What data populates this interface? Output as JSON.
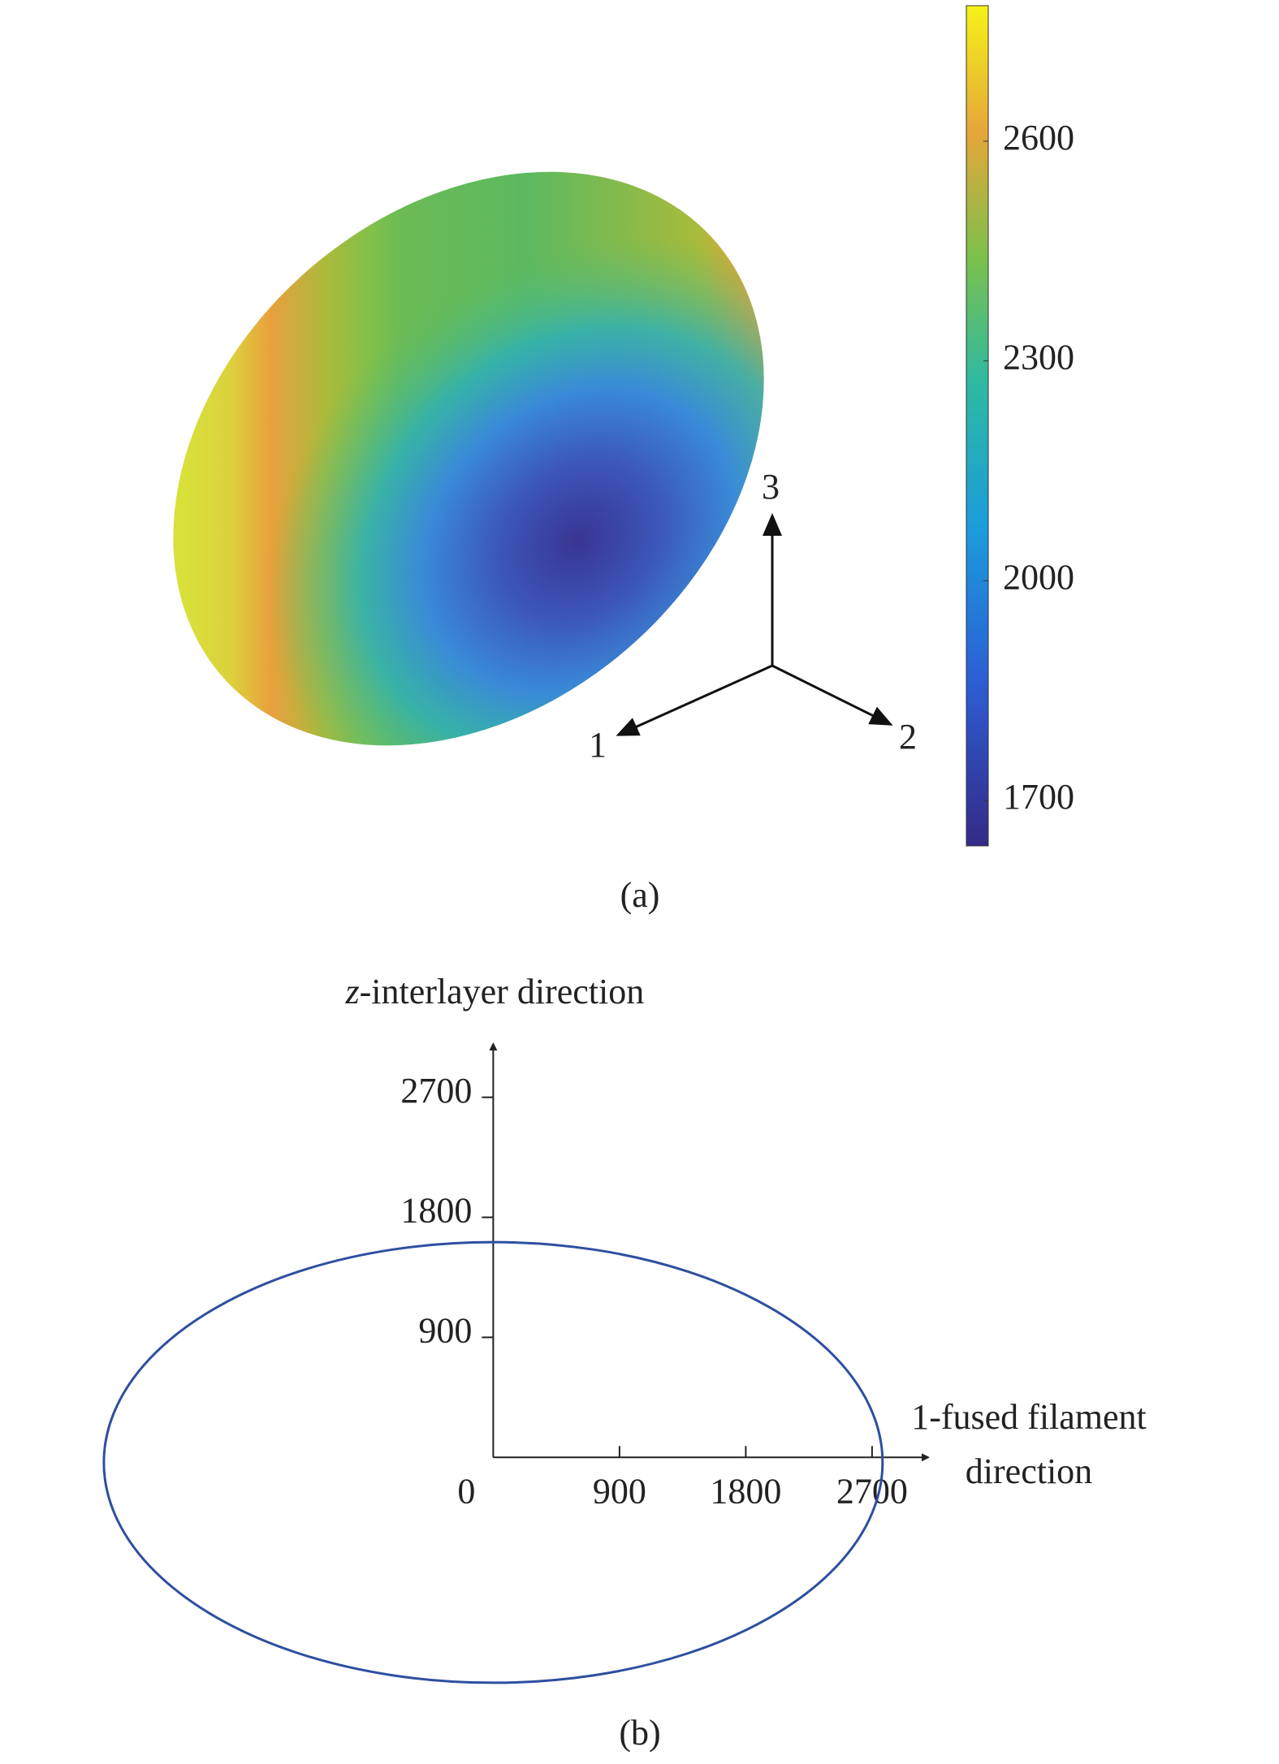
{
  "chart_data": [
    {
      "type": "surface",
      "colormap": "parula",
      "clim": [
        1638,
        2785
      ],
      "cticks": [
        1700,
        2000,
        2300,
        2600
      ],
      "xlabel": "1",
      "ylabel": "2",
      "zlabel": "3",
      "caption": "(a)"
    },
    {
      "type": "line",
      "ylabel": "z-interlayer direction",
      "xlabel": "1-fused filament direction",
      "caption": "(b)",
      "xlim": [
        -3000,
        3100
      ],
      "ylim": [
        -1800,
        3100
      ],
      "xticks": [
        0,
        900,
        1800,
        2700
      ],
      "yticks": [
        900,
        1800,
        2700
      ],
      "closed": true,
      "series": [
        {
          "color": "#2e4fa0",
          "x": [
            2775,
            2680,
            2403,
            1962,
            1388,
            718,
            0,
            -718,
            -1388,
            -1962,
            -2403,
            -2680,
            -2775,
            -2680,
            -2403,
            -1962,
            -1388,
            -718,
            0,
            718,
            1388,
            1962,
            2403,
            2680
          ],
          "y": [
            -38,
            390,
            788,
            1130,
            1393,
            1558,
            1614,
            1558,
            1393,
            1130,
            788,
            390,
            -38,
            -466,
            -864,
            -1206,
            -1469,
            -1634,
            -1690,
            -1634,
            -1469,
            -1206,
            -864,
            -466
          ]
        }
      ]
    }
  ]
}
